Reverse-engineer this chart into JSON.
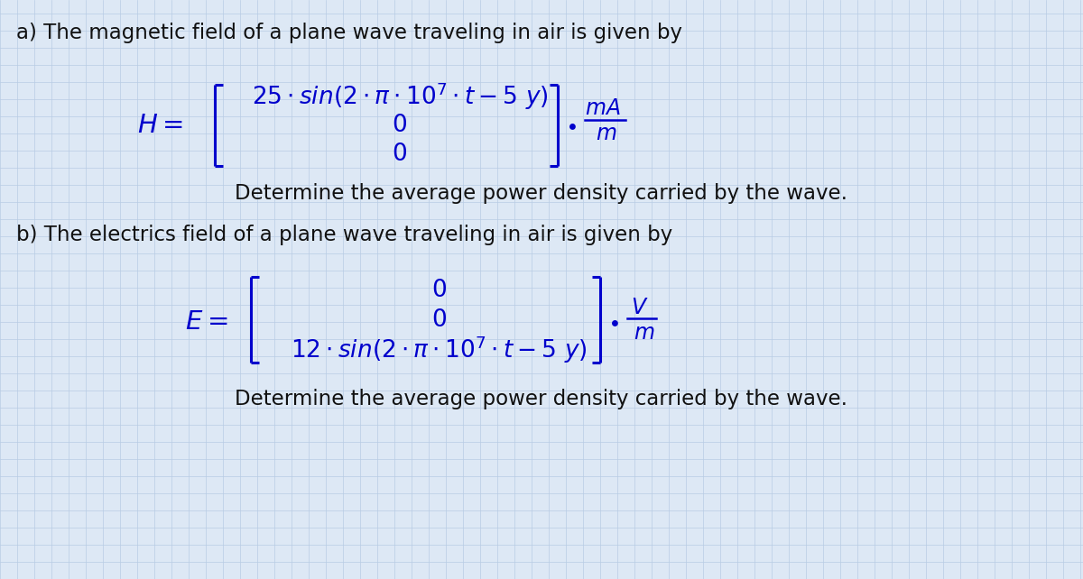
{
  "bg_color": "#dde8f5",
  "grid_color": "#b8cce4",
  "text_color_black": "#111111",
  "text_color_blue": "#0000CC",
  "fig_width": 12.0,
  "fig_height": 6.42,
  "title_a": "a) The magnetic field of a plane wave traveling in air is given by",
  "title_b": "b) The electrics field of a plane wave traveling in air is given by",
  "determine": "Determine the average power density carried by the wave.",
  "font_size_title": 16.5,
  "font_size_eq": 19,
  "font_size_bracket": 60,
  "font_size_unit": 17,
  "font_size_small": 15
}
